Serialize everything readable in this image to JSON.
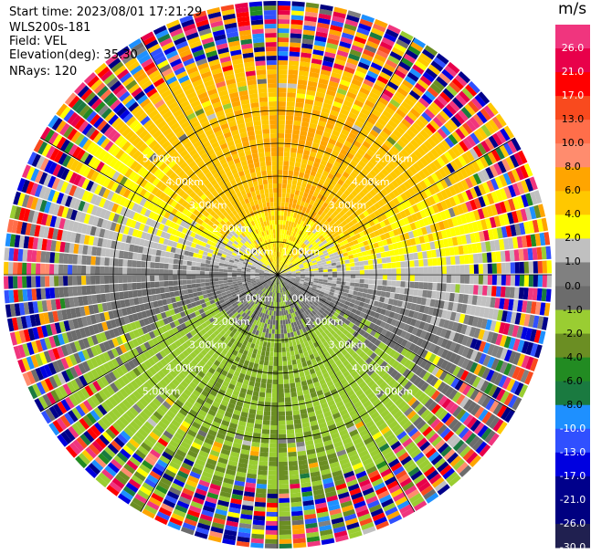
{
  "header": {
    "start_time": "Start time: 2023/08/01 17:21:29",
    "instrument": "WLS200s-181",
    "field": "Field: VEL",
    "elevation": "Elevation(deg): 35.30",
    "nrays": "NRays: 120"
  },
  "colorbar": {
    "unit": "m/s",
    "colors": [
      "#f0357e",
      "#e8004a",
      "#ff0000",
      "#f94a1e",
      "#ff6e4a",
      "#ff8c6e",
      "#ffa500",
      "#ffc800",
      "#ffff00",
      "#c0c0c0",
      "#808080",
      "#6c6c6c",
      "#9acd32",
      "#6b8e23",
      "#228b22",
      "#1a7a40",
      "#1e90ff",
      "#3050ff",
      "#0000e0",
      "#00008b",
      "#000080",
      "#202050"
    ],
    "tick_labels": [
      "26.0",
      "21.0",
      "17.0",
      "13.0",
      "10.0",
      "8.0",
      "6.0",
      "4.0",
      "2.0",
      "1.0",
      "0.0",
      "-1.0",
      "-2.0",
      "-4.0",
      "-6.0",
      "-8.0",
      "-10.0",
      "-13.0",
      "-17.0",
      "-21.0",
      "-26.0",
      "-30.0"
    ]
  },
  "chart_data": {
    "type": "heatmap",
    "projection": "polar PPI",
    "field": "VEL",
    "units": "m/s",
    "elevation_deg": 35.3,
    "n_rays": 120,
    "range_rings_km": [
      1.0,
      2.0,
      3.0,
      4.0,
      5.0
    ],
    "ring_labels": [
      "1.00km",
      "2.00km",
      "3.00km",
      "4.00km",
      "5.00km"
    ],
    "max_range_km": 5.0,
    "vmin": -30.0,
    "vmax": 30.0,
    "pattern": "Positive (toward yellow/orange, 2-6 m/s) velocities in the northern half, negative (green, -2 to -6 m/s) in the southern half, noisy multicolor values beyond ~3.5 km."
  }
}
